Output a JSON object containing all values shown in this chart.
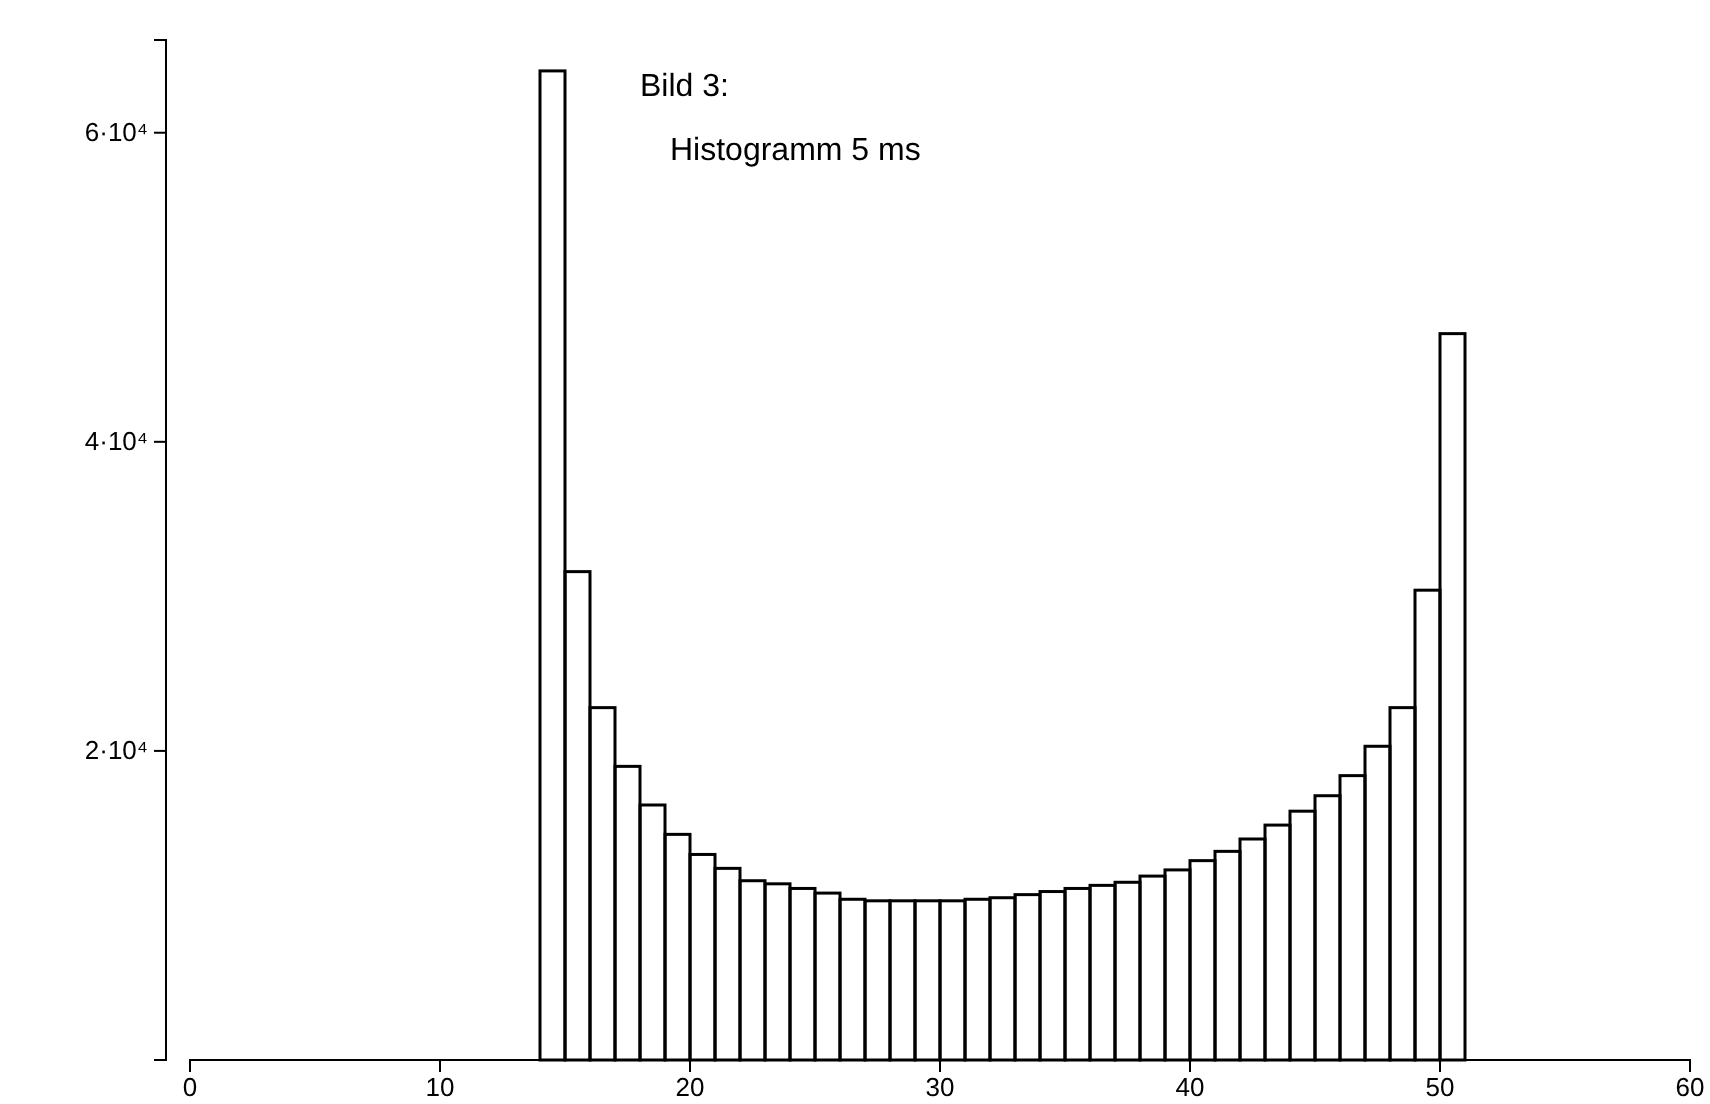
{
  "chart_data": {
    "type": "histogram",
    "title": "Bild 3:",
    "subtitle": "Histogramm 5 ms",
    "bins": [
      14,
      15,
      16,
      17,
      18,
      19,
      20,
      21,
      22,
      23,
      24,
      25,
      26,
      27,
      28,
      29,
      30,
      31,
      32,
      33,
      34,
      35,
      36,
      37,
      38,
      39,
      40,
      41,
      42,
      43,
      44,
      45,
      46,
      47,
      48,
      49,
      50,
      51
    ],
    "values": [
      64000,
      31600,
      22800,
      19000,
      16500,
      14600,
      13300,
      12400,
      11600,
      11400,
      11100,
      10800,
      10400,
      10300,
      10300,
      10300,
      10300,
      10400,
      10500,
      10700,
      10900,
      11100,
      11300,
      11500,
      11900,
      12300,
      12900,
      13500,
      14300,
      15200,
      16100,
      17100,
      18400,
      20300,
      22800,
      30400,
      47000
    ],
    "color": "#000000",
    "xlim": [
      0,
      60
    ],
    "xticks": [
      0,
      10,
      20,
      30,
      40,
      50,
      60
    ],
    "ylim": [
      0,
      66000
    ],
    "yticks": [
      {
        "value": 20000,
        "label": "2·10⁴"
      },
      {
        "value": 40000,
        "label": "4·10⁴"
      },
      {
        "value": 60000,
        "label": "6·10⁴"
      }
    ],
    "grid": false
  }
}
